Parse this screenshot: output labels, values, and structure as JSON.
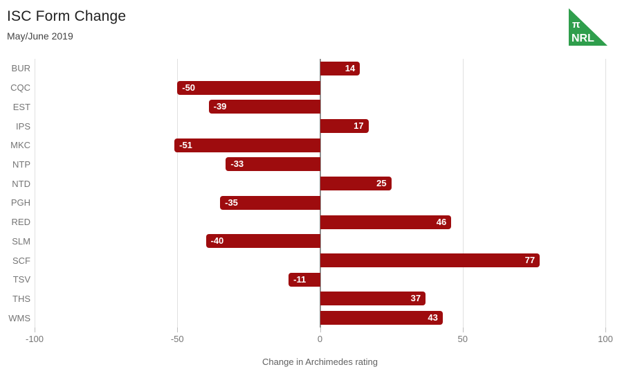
{
  "header": {
    "title": "ISC Form Change",
    "subtitle": "May/June 2019"
  },
  "logo": {
    "line1": "π",
    "line2": "NRL",
    "color": "#2F9E4C",
    "text_color": "#FFFFFF"
  },
  "chart_data": {
    "type": "bar",
    "orientation": "horizontal",
    "title": "ISC Form Change",
    "subtitle": "May/June 2019",
    "categories": [
      "BUR",
      "CQC",
      "EST",
      "IPS",
      "MKC",
      "NTP",
      "NTD",
      "PGH",
      "RED",
      "SLM",
      "SCF",
      "TSV",
      "THS",
      "WMS"
    ],
    "values": [
      14,
      -50,
      -39,
      17,
      -51,
      -33,
      25,
      -35,
      46,
      -40,
      77,
      -11,
      37,
      43
    ],
    "xlabel": "Change in Archimedes rating",
    "xlim": [
      -100,
      100
    ],
    "xticks": [
      -100,
      -50,
      0,
      50,
      100
    ],
    "grid": true,
    "legend": "none",
    "bar_color": "#9E0C0E",
    "value_label_color": "#FFFFFF",
    "value_label_position": "inside-end"
  }
}
